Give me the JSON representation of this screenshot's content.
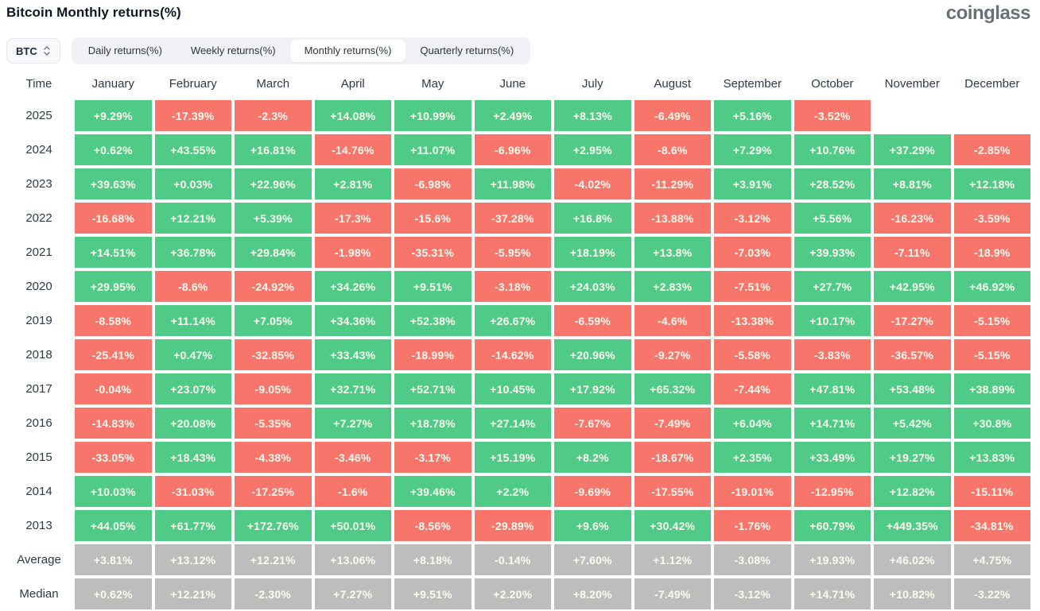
{
  "header": {
    "title": "Bitcoin Monthly returns(%)",
    "logo": "coinglass"
  },
  "controls": {
    "coin": "BTC",
    "tabs": [
      {
        "label": "Daily returns(%)",
        "active": false
      },
      {
        "label": "Weekly returns(%)",
        "active": false
      },
      {
        "label": "Monthly returns(%)",
        "active": true
      },
      {
        "label": "Quarterly returns(%)",
        "active": false
      }
    ]
  },
  "colors": {
    "positive": "#4fcb87",
    "negative": "#f8756c",
    "summary": "#bdbdbd",
    "cell_text": "#fcfbf0"
  },
  "table": {
    "time_header": "Time",
    "months": [
      "January",
      "February",
      "March",
      "April",
      "May",
      "June",
      "July",
      "August",
      "September",
      "October",
      "November",
      "December"
    ],
    "rows": [
      {
        "label": "2025",
        "summary": false,
        "values": [
          "+9.29%",
          "-17.39%",
          "-2.3%",
          "+14.08%",
          "+10.99%",
          "+2.49%",
          "+8.13%",
          "-6.49%",
          "+5.16%",
          "-3.52%",
          "",
          ""
        ]
      },
      {
        "label": "2024",
        "summary": false,
        "values": [
          "+0.62%",
          "+43.55%",
          "+16.81%",
          "-14.76%",
          "+11.07%",
          "-6.96%",
          "+2.95%",
          "-8.6%",
          "+7.29%",
          "+10.76%",
          "+37.29%",
          "-2.85%"
        ]
      },
      {
        "label": "2023",
        "summary": false,
        "values": [
          "+39.63%",
          "+0.03%",
          "+22.96%",
          "+2.81%",
          "-6.98%",
          "+11.98%",
          "-4.02%",
          "-11.29%",
          "+3.91%",
          "+28.52%",
          "+8.81%",
          "+12.18%"
        ]
      },
      {
        "label": "2022",
        "summary": false,
        "values": [
          "-16.68%",
          "+12.21%",
          "+5.39%",
          "-17.3%",
          "-15.6%",
          "-37.28%",
          "+16.8%",
          "-13.88%",
          "-3.12%",
          "+5.56%",
          "-16.23%",
          "-3.59%"
        ]
      },
      {
        "label": "2021",
        "summary": false,
        "values": [
          "+14.51%",
          "+36.78%",
          "+29.84%",
          "-1.98%",
          "-35.31%",
          "-5.95%",
          "+18.19%",
          "+13.8%",
          "-7.03%",
          "+39.93%",
          "-7.11%",
          "-18.9%"
        ]
      },
      {
        "label": "2020",
        "summary": false,
        "values": [
          "+29.95%",
          "-8.6%",
          "-24.92%",
          "+34.26%",
          "+9.51%",
          "-3.18%",
          "+24.03%",
          "+2.83%",
          "-7.51%",
          "+27.7%",
          "+42.95%",
          "+46.92%"
        ]
      },
      {
        "label": "2019",
        "summary": false,
        "values": [
          "-8.58%",
          "+11.14%",
          "+7.05%",
          "+34.36%",
          "+52.38%",
          "+26.67%",
          "-6.59%",
          "-4.6%",
          "-13.38%",
          "+10.17%",
          "-17.27%",
          "-5.15%"
        ]
      },
      {
        "label": "2018",
        "summary": false,
        "values": [
          "-25.41%",
          "+0.47%",
          "-32.85%",
          "+33.43%",
          "-18.99%",
          "-14.62%",
          "+20.96%",
          "-9.27%",
          "-5.58%",
          "-3.83%",
          "-36.57%",
          "-5.15%"
        ]
      },
      {
        "label": "2017",
        "summary": false,
        "values": [
          "-0.04%",
          "+23.07%",
          "-9.05%",
          "+32.71%",
          "+52.71%",
          "+10.45%",
          "+17.92%",
          "+65.32%",
          "-7.44%",
          "+47.81%",
          "+53.48%",
          "+38.89%"
        ]
      },
      {
        "label": "2016",
        "summary": false,
        "values": [
          "-14.83%",
          "+20.08%",
          "-5.35%",
          "+7.27%",
          "+18.78%",
          "+27.14%",
          "-7.67%",
          "-7.49%",
          "+6.04%",
          "+14.71%",
          "+5.42%",
          "+30.8%"
        ]
      },
      {
        "label": "2015",
        "summary": false,
        "values": [
          "-33.05%",
          "+18.43%",
          "-4.38%",
          "-3.46%",
          "-3.17%",
          "+15.19%",
          "+8.2%",
          "-18.67%",
          "+2.35%",
          "+33.49%",
          "+19.27%",
          "+13.83%"
        ]
      },
      {
        "label": "2014",
        "summary": false,
        "values": [
          "+10.03%",
          "-31.03%",
          "-17.25%",
          "-1.6%",
          "+39.46%",
          "+2.2%",
          "-9.69%",
          "-17.55%",
          "-19.01%",
          "-12.95%",
          "+12.82%",
          "-15.11%"
        ]
      },
      {
        "label": "2013",
        "summary": false,
        "values": [
          "+44.05%",
          "+61.77%",
          "+172.76%",
          "+50.01%",
          "-8.56%",
          "-29.89%",
          "+9.6%",
          "+30.42%",
          "-1.76%",
          "+60.79%",
          "+449.35%",
          "-34.81%"
        ]
      },
      {
        "label": "Average",
        "summary": true,
        "values": [
          "+3.81%",
          "+13.12%",
          "+12.21%",
          "+13.06%",
          "+8.18%",
          "-0.14%",
          "+7.60%",
          "+1.12%",
          "-3.08%",
          "+19.93%",
          "+46.02%",
          "+4.75%"
        ]
      },
      {
        "label": "Median",
        "summary": true,
        "values": [
          "+0.62%",
          "+12.21%",
          "-2.30%",
          "+7.27%",
          "+9.51%",
          "+2.20%",
          "+8.20%",
          "-7.49%",
          "-3.12%",
          "+14.71%",
          "+10.82%",
          "-3.22%"
        ]
      }
    ]
  }
}
